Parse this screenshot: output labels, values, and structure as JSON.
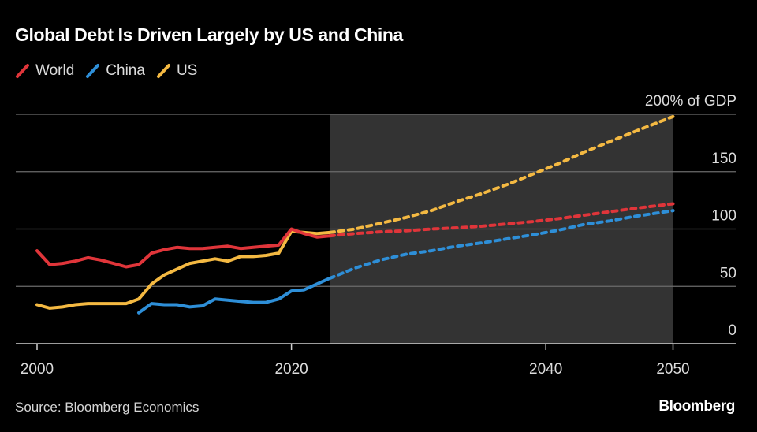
{
  "title": "Global Debt Is Driven Largely by US and China",
  "legend": [
    {
      "name": "World",
      "color": "#e0353a"
    },
    {
      "name": "China",
      "color": "#2e8fd8"
    },
    {
      "name": "US",
      "color": "#f4b942"
    }
  ],
  "source": "Source: Bloomberg Economics",
  "brand": "Bloomberg",
  "chart_data": {
    "type": "line",
    "title": "Global Debt Is Driven Largely by US and China",
    "xlabel": "",
    "ylabel": "% of GDP",
    "y_axis_position": "right",
    "y_unit_label": "200% of GDP",
    "xlim": [
      1998,
      2055
    ],
    "ylim": [
      0,
      200
    ],
    "x_ticks": [
      2000,
      2020,
      2040,
      2050
    ],
    "x_tick_labels": [
      "2000",
      "2020",
      "2040",
      "2050"
    ],
    "y_ticks": [
      0,
      50,
      100,
      150,
      200
    ],
    "y_tick_labels": [
      "0",
      "50",
      "100",
      "150",
      "200% of GDP"
    ],
    "grid": true,
    "legend_position": "top-left",
    "projection_shading": {
      "from": 2023,
      "to": 2050,
      "color": "#333333"
    },
    "series": [
      {
        "name": "World",
        "color": "#e0353a",
        "historical": {
          "x": [
            2000,
            2001,
            2002,
            2003,
            2004,
            2005,
            2006,
            2007,
            2008,
            2009,
            2010,
            2011,
            2012,
            2013,
            2014,
            2015,
            2016,
            2017,
            2018,
            2019,
            2020,
            2021,
            2022,
            2023
          ],
          "y": [
            81,
            69,
            70,
            72,
            75,
            73,
            70,
            67,
            69,
            79,
            82,
            84,
            83,
            83,
            84,
            85,
            83,
            84,
            85,
            86,
            100,
            96,
            93,
            94
          ]
        },
        "projection": {
          "x": [
            2023,
            2025,
            2027,
            2029,
            2031,
            2033,
            2035,
            2037,
            2039,
            2041,
            2043,
            2045,
            2047,
            2050
          ],
          "y": [
            94,
            96,
            97.5,
            98.5,
            100,
            101,
            102.5,
            104.5,
            106.5,
            109,
            112,
            115,
            118,
            122
          ]
        }
      },
      {
        "name": "China",
        "color": "#2e8fd8",
        "historical": {
          "x": [
            2008,
            2009,
            2010,
            2011,
            2012,
            2013,
            2014,
            2015,
            2016,
            2017,
            2018,
            2019,
            2020,
            2021,
            2022,
            2023
          ],
          "y": [
            27,
            35,
            34,
            34,
            32,
            33,
            39,
            38,
            37,
            36,
            36,
            39,
            46,
            47,
            52,
            57
          ]
        },
        "projection": {
          "x": [
            2023,
            2025,
            2027,
            2029,
            2031,
            2033,
            2035,
            2037,
            2039,
            2041,
            2043,
            2045,
            2047,
            2050
          ],
          "y": [
            57,
            66,
            73,
            78,
            81,
            85,
            88,
            91.5,
            95,
            99,
            104,
            107,
            111,
            116
          ]
        }
      },
      {
        "name": "US",
        "color": "#f4b942",
        "historical": {
          "x": [
            2000,
            2001,
            2002,
            2003,
            2004,
            2005,
            2006,
            2007,
            2008,
            2009,
            2010,
            2011,
            2012,
            2013,
            2014,
            2015,
            2016,
            2017,
            2018,
            2019,
            2020,
            2021,
            2022,
            2023
          ],
          "y": [
            34,
            31,
            32,
            34,
            35,
            35,
            35,
            35,
            39,
            52,
            60,
            65,
            70,
            72,
            74,
            72,
            76,
            76,
            77,
            79,
            98,
            97,
            96,
            97
          ]
        },
        "projection": {
          "x": [
            2023,
            2025,
            2027,
            2029,
            2031,
            2033,
            2035,
            2037,
            2039,
            2041,
            2043,
            2045,
            2047,
            2050
          ],
          "y": [
            97,
            100,
            105,
            110,
            116,
            124,
            131,
            139,
            148,
            157,
            167,
            176,
            185,
            198
          ]
        }
      }
    ]
  }
}
